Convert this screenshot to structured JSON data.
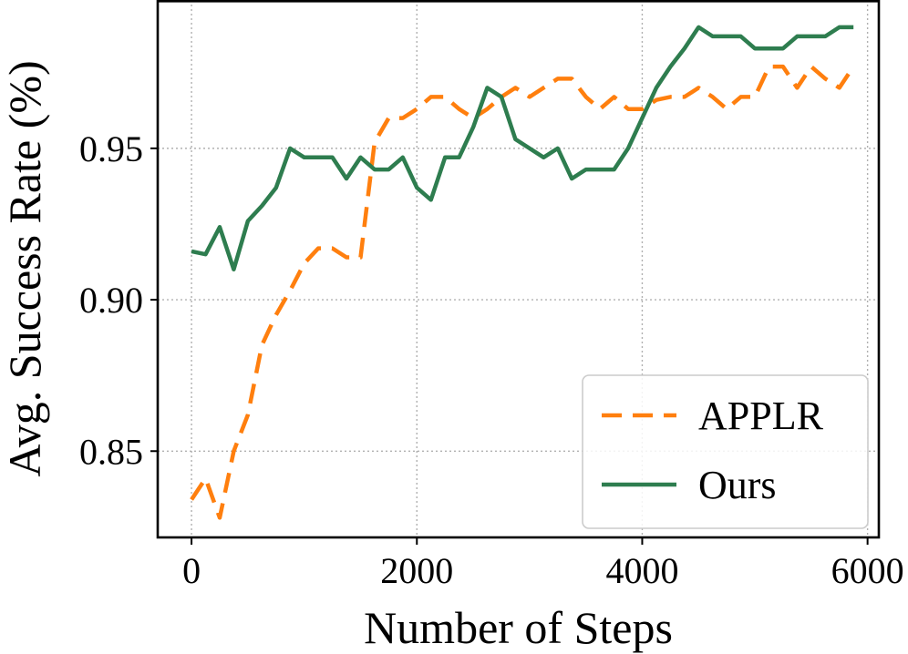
{
  "chart_data": {
    "type": "line",
    "xlabel": "Number of Steps",
    "ylabel": "Avg. Success Rate (%)",
    "xlim": [
      -300,
      6100
    ],
    "ylim": [
      0.8215,
      0.999
    ],
    "xticks": [
      0,
      2000,
      4000,
      6000
    ],
    "xtick_labels": [
      "0",
      "2000",
      "4000",
      "6000"
    ],
    "yticks": [
      0.85,
      0.9,
      0.95
    ],
    "ytick_labels": [
      "0.85",
      "0.90",
      "0.95"
    ],
    "grid": true,
    "legend_position": "lower-right",
    "series": [
      {
        "name": "APPLR",
        "color": "#ff7f0e",
        "style": "dashed",
        "x": [
          0,
          125,
          250,
          375,
          500,
          625,
          750,
          875,
          1000,
          1125,
          1250,
          1375,
          1500,
          1625,
          1750,
          1875,
          2000,
          2125,
          2250,
          2375,
          2500,
          2625,
          2750,
          2875,
          3000,
          3125,
          3250,
          3375,
          3500,
          3625,
          3750,
          3875,
          4000,
          4125,
          4250,
          4375,
          4500,
          4625,
          4750,
          4875,
          5000,
          5125,
          5250,
          5375,
          5500,
          5625,
          5750,
          5875
        ],
        "y": [
          0.834,
          0.841,
          0.828,
          0.85,
          0.862,
          0.885,
          0.895,
          0.903,
          0.912,
          0.917,
          0.917,
          0.914,
          0.914,
          0.952,
          0.96,
          0.96,
          0.963,
          0.967,
          0.967,
          0.963,
          0.96,
          0.963,
          0.967,
          0.97,
          0.967,
          0.97,
          0.973,
          0.973,
          0.967,
          0.963,
          0.967,
          0.963,
          0.963,
          0.966,
          0.967,
          0.967,
          0.97,
          0.967,
          0.963,
          0.967,
          0.967,
          0.977,
          0.977,
          0.97,
          0.977,
          0.973,
          0.97,
          0.977
        ]
      },
      {
        "name": "Ours",
        "color": "#2e7d4f",
        "style": "solid",
        "x": [
          0,
          125,
          250,
          375,
          500,
          625,
          750,
          875,
          1000,
          1125,
          1250,
          1375,
          1500,
          1625,
          1750,
          1875,
          2000,
          2125,
          2250,
          2375,
          2500,
          2625,
          2750,
          2875,
          3000,
          3125,
          3250,
          3375,
          3500,
          3625,
          3750,
          3875,
          4000,
          4125,
          4250,
          4375,
          4500,
          4625,
          4750,
          4875,
          5000,
          5125,
          5250,
          5375,
          5500,
          5625,
          5750,
          5875
        ],
        "y": [
          0.916,
          0.915,
          0.924,
          0.91,
          0.926,
          0.931,
          0.937,
          0.95,
          0.947,
          0.947,
          0.947,
          0.94,
          0.947,
          0.943,
          0.943,
          0.947,
          0.937,
          0.933,
          0.947,
          0.947,
          0.957,
          0.97,
          0.967,
          0.953,
          0.95,
          0.947,
          0.95,
          0.94,
          0.943,
          0.943,
          0.943,
          0.95,
          0.96,
          0.97,
          0.977,
          0.983,
          0.99,
          0.987,
          0.987,
          0.987,
          0.983,
          0.983,
          0.983,
          0.987,
          0.987,
          0.987,
          0.99,
          0.99
        ]
      }
    ]
  }
}
